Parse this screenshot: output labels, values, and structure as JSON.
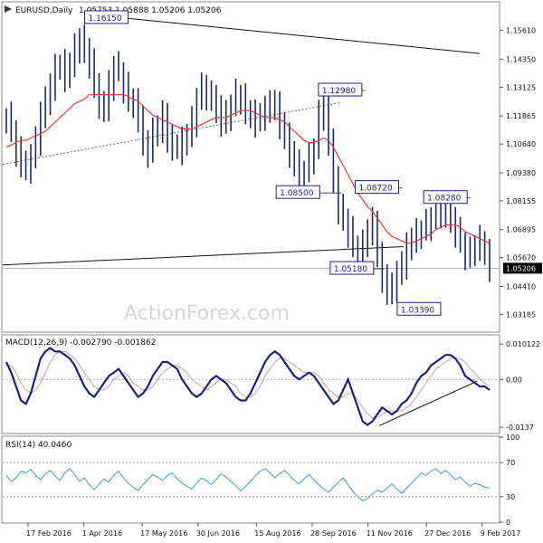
{
  "header": {
    "title": "EURUSD,Daily",
    "ohlc": "1.05753 1.05888 1.05206 1.05206"
  },
  "watermark": "ActionForex.com",
  "colors": {
    "price_bars": "#1a2a6c",
    "ma": "#e83a3a",
    "macd": "#1b1f8a",
    "signal": "#d49b9b",
    "rsi": "#3b9bd8",
    "lines": "#111111",
    "dotted": "#666666",
    "panel_border": "#888888",
    "box_border": "#1b1f8a"
  },
  "x_axis": {
    "labels": [
      "17 Feb 2016",
      "1 Apr 2016",
      "17 May 2016",
      "30 Jun 2016",
      "15 Aug 2016",
      "28 Sep 2016",
      "11 Nov 2016",
      "27 Dec 2016",
      "9 Feb 2017"
    ]
  },
  "chart_data": [
    {
      "type": "candlestick",
      "title": "EURUSD,Daily",
      "y_ticks": [
        "1.15610",
        "1.14350",
        "1.13125",
        "1.11865",
        "1.10640",
        "1.09380",
        "1.08155",
        "1.06895",
        "1.05670",
        "1.04410",
        "1.03185"
      ],
      "current_price": "1.05206",
      "ylim": [
        1.0245,
        1.1682
      ],
      "annotations": [
        {
          "label": "1.16150",
          "value": 1.1615,
          "date": "3 May 2016"
        },
        {
          "label": "1.12980",
          "value": 1.1298,
          "date": "9 Nov 2016"
        },
        {
          "label": "1.08500",
          "value": 1.085,
          "date": "21 Oct 2016"
        },
        {
          "label": "1.08720",
          "value": 1.0872,
          "date": "8 Dec 2016"
        },
        {
          "label": "1.08280",
          "value": 1.0828,
          "date": "31 Jan 2017"
        },
        {
          "label": "1.05180",
          "value": 1.0518,
          "date": "24 Nov 2016"
        },
        {
          "label": "1.03390",
          "value": 1.0339,
          "date": "3 Jan 2017"
        }
      ],
      "close_series": [
        1.118,
        1.112,
        1.103,
        1.098,
        1.096,
        1.1,
        1.108,
        1.119,
        1.125,
        1.132,
        1.139,
        1.141,
        1.136,
        1.142,
        1.148,
        1.152,
        1.147,
        1.142,
        1.131,
        1.124,
        1.122,
        1.132,
        1.14,
        1.138,
        1.131,
        1.126,
        1.124,
        1.118,
        1.106,
        1.103,
        1.112,
        1.113,
        1.119,
        1.108,
        1.106,
        1.104,
        1.107,
        1.111,
        1.116,
        1.126,
        1.131,
        1.128,
        1.126,
        1.122,
        1.116,
        1.119,
        1.123,
        1.128,
        1.126,
        1.121,
        1.119,
        1.116,
        1.119,
        1.121,
        1.124,
        1.123,
        1.115,
        1.109,
        1.103,
        1.097,
        1.092,
        1.095,
        1.1,
        1.104,
        1.119,
        1.123,
        1.107,
        1.091,
        1.078,
        1.073,
        1.068,
        1.062,
        1.058,
        1.062,
        1.069,
        1.072,
        1.057,
        1.048,
        1.042,
        1.044,
        1.049,
        1.054,
        1.061,
        1.065,
        1.067,
        1.069,
        1.071,
        1.074,
        1.076,
        1.078,
        1.076,
        1.073,
        1.068,
        1.063,
        1.058,
        1.059,
        1.062,
        1.064,
        1.058,
        1.053
      ],
      "ma_series": [
        1.105,
        1.106,
        1.107,
        1.108,
        1.108,
        1.109,
        1.11,
        1.111,
        1.112,
        1.114,
        1.116,
        1.118,
        1.12,
        1.122,
        1.124,
        1.125,
        1.126,
        1.128,
        1.128,
        1.128,
        1.128,
        1.128,
        1.128,
        1.128,
        1.128,
        1.127,
        1.126,
        1.125,
        1.123,
        1.121,
        1.119,
        1.118,
        1.117,
        1.116,
        1.115,
        1.114,
        1.113,
        1.113,
        1.113,
        1.114,
        1.115,
        1.116,
        1.117,
        1.118,
        1.118,
        1.118,
        1.119,
        1.12,
        1.121,
        1.121,
        1.121,
        1.12,
        1.119,
        1.118,
        1.118,
        1.118,
        1.117,
        1.116,
        1.114,
        1.112,
        1.11,
        1.108,
        1.107,
        1.107,
        1.108,
        1.109,
        1.108,
        1.105,
        1.101,
        1.097,
        1.093,
        1.089,
        1.085,
        1.082,
        1.079,
        1.077,
        1.074,
        1.071,
        1.068,
        1.066,
        1.065,
        1.064,
        1.063,
        1.063,
        1.064,
        1.065,
        1.066,
        1.067,
        1.069,
        1.07,
        1.071,
        1.071,
        1.071,
        1.07,
        1.068,
        1.067,
        1.066,
        1.065,
        1.064,
        1.063
      ]
    },
    {
      "type": "line",
      "title": "MACD(12,26,9) -0.002790 -0.001862",
      "y_ticks": [
        "0.010122",
        "0.00",
        "-0.0137"
      ],
      "series": [
        {
          "name": "MACD",
          "values": [
            0.005,
            0.002,
            -0.002,
            -0.006,
            -0.007,
            -0.004,
            0.001,
            0.006,
            0.008,
            0.009,
            0.008,
            0.008,
            0.007,
            0.006,
            0.004,
            0.001,
            -0.002,
            -0.004,
            -0.005,
            -0.003,
            -0.001,
            0.001,
            0.002,
            0.003,
            0.001,
            -0.001,
            -0.003,
            -0.005,
            -0.004,
            -0.002,
            0.001,
            0.003,
            0.005,
            0.005,
            0.004,
            0.003,
            0.0,
            -0.002,
            -0.004,
            -0.005,
            -0.004,
            -0.002,
            0.0,
            0.001,
            0.0,
            -0.001,
            -0.003,
            -0.005,
            -0.006,
            -0.006,
            -0.004,
            -0.001,
            0.002,
            0.005,
            0.007,
            0.008,
            0.007,
            0.005,
            0.003,
            0.001,
            0.0,
            0.001,
            0.002,
            0.001,
            -0.001,
            -0.003,
            -0.005,
            -0.007,
            -0.006,
            -0.003,
            0.0,
            -0.004,
            -0.008,
            -0.012,
            -0.013,
            -0.012,
            -0.01,
            -0.008,
            -0.009,
            -0.01,
            -0.009,
            -0.007,
            -0.006,
            -0.004,
            -0.001,
            0.001,
            0.002,
            0.004,
            0.005,
            0.006,
            0.007,
            0.007,
            0.006,
            0.004,
            0.001,
            0.0,
            -0.001,
            -0.002,
            -0.002,
            -0.003
          ]
        },
        {
          "name": "Signal",
          "values": [
            0.004,
            0.004,
            0.002,
            -0.001,
            -0.003,
            -0.004,
            -0.003,
            -0.001,
            0.002,
            0.005,
            0.007,
            0.008,
            0.008,
            0.007,
            0.006,
            0.004,
            0.002,
            0.0,
            -0.002,
            -0.003,
            -0.003,
            -0.002,
            0.0,
            0.001,
            0.002,
            0.001,
            -0.001,
            -0.002,
            -0.003,
            -0.003,
            -0.002,
            0.0,
            0.002,
            0.003,
            0.004,
            0.004,
            0.003,
            0.002,
            0.0,
            -0.001,
            -0.002,
            -0.003,
            -0.002,
            -0.001,
            0.0,
            0.0,
            -0.001,
            -0.002,
            -0.004,
            -0.005,
            -0.005,
            -0.004,
            -0.002,
            0.001,
            0.003,
            0.005,
            0.006,
            0.006,
            0.005,
            0.004,
            0.003,
            0.002,
            0.002,
            0.002,
            0.001,
            -0.001,
            -0.003,
            -0.004,
            -0.005,
            -0.005,
            -0.004,
            -0.004,
            -0.006,
            -0.008,
            -0.01,
            -0.011,
            -0.011,
            -0.01,
            -0.009,
            -0.009,
            -0.009,
            -0.009,
            -0.008,
            -0.007,
            -0.005,
            -0.003,
            -0.001,
            0.001,
            0.003,
            0.004,
            0.005,
            0.006,
            0.006,
            0.006,
            0.005,
            0.003,
            0.002,
            0.0,
            -0.001,
            -0.002
          ]
        }
      ],
      "ylim": [
        -0.0152,
        0.0125
      ]
    },
    {
      "type": "line",
      "title": "RSI(14) 40.0460",
      "y_ticks": [
        "100",
        "70",
        "30",
        "0"
      ],
      "levels": [
        70,
        30
      ],
      "series": [
        {
          "name": "RSI",
          "values": [
            55,
            48,
            52,
            60,
            58,
            62,
            55,
            50,
            57,
            61,
            54,
            49,
            58,
            63,
            56,
            48,
            52,
            44,
            38,
            45,
            51,
            47,
            55,
            60,
            52,
            46,
            41,
            37,
            44,
            50,
            56,
            53,
            49,
            55,
            58,
            51,
            46,
            42,
            39,
            46,
            52,
            49,
            44,
            50,
            57,
            53,
            48,
            43,
            37,
            42,
            48,
            54,
            60,
            63,
            58,
            52,
            57,
            61,
            55,
            49,
            45,
            51,
            56,
            50,
            44,
            39,
            35,
            41,
            47,
            52,
            44,
            36,
            30,
            25,
            28,
            33,
            38,
            35,
            40,
            45,
            39,
            34,
            40,
            46,
            52,
            58,
            55,
            60,
            63,
            57,
            61,
            56,
            50,
            53,
            47,
            42,
            46,
            44,
            41,
            40
          ]
        }
      ],
      "ylim": [
        0,
        100
      ]
    }
  ]
}
